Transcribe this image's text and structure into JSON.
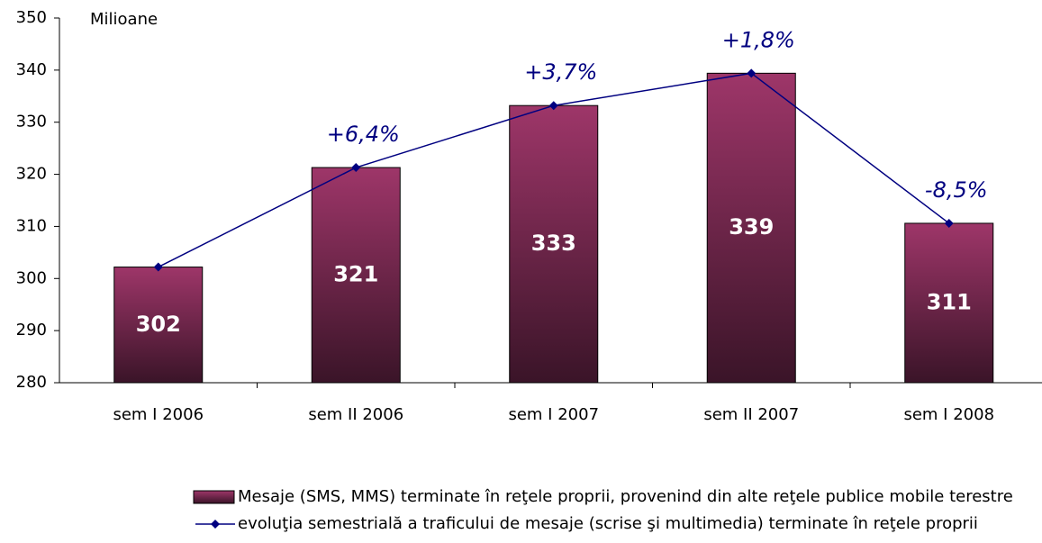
{
  "chart_data": {
    "type": "bar-line",
    "y_label": "Milioane",
    "categories": [
      "sem I 2006",
      "sem II 2006",
      "sem I 2007",
      "sem II 2007",
      "sem I 2008"
    ],
    "series": [
      {
        "name": "Mesaje (SMS, MMS) terminate în reţele proprii, provenind din alte reţele publice mobile terestre",
        "type": "bar",
        "color": "#8e2f5e",
        "values": [
          302.2,
          321.3,
          333.2,
          339.4,
          310.6
        ],
        "value_labels": [
          "302",
          "321",
          "333",
          "339",
          "311"
        ]
      },
      {
        "name": "evoluţia semestrială a traficului de mesaje (scrise şi multimedia) terminate în reţele proprii",
        "type": "line",
        "color": "#000080",
        "values": [
          302.2,
          321.3,
          333.2,
          339.4,
          310.6
        ],
        "annotations": [
          null,
          "+6,4%",
          "+3,7%",
          "+1,8%",
          "-8,5%"
        ]
      }
    ],
    "ylim": [
      280,
      350
    ],
    "yticks": [
      280,
      290,
      300,
      310,
      320,
      330,
      340,
      350
    ]
  }
}
